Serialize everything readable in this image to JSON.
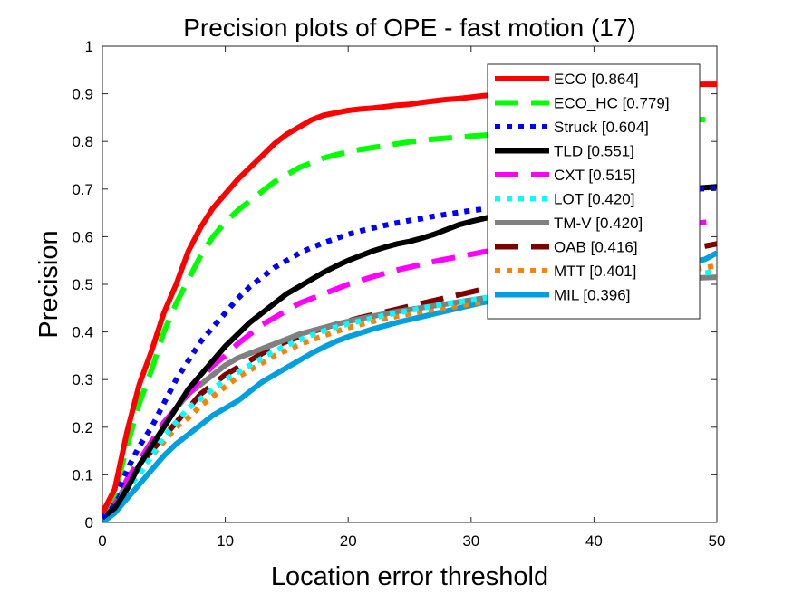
{
  "chart_data": {
    "type": "line",
    "title": "Precision plots of OPE - fast motion (17)",
    "xlabel": "Location error threshold",
    "ylabel": "Precision",
    "xlim": [
      0,
      50
    ],
    "ylim": [
      0,
      1
    ],
    "x_ticks": [
      "0",
      "10",
      "20",
      "30",
      "40",
      "50"
    ],
    "y_ticks": [
      "0",
      "0.1",
      "0.2",
      "0.3",
      "0.4",
      "0.5",
      "0.6",
      "0.7",
      "0.8",
      "0.9",
      "1"
    ],
    "grid": false,
    "legend_position": "top-right",
    "x": [
      0,
      1,
      2,
      3,
      4,
      5,
      6,
      7,
      8,
      9,
      10,
      11,
      12,
      13,
      14,
      15,
      16,
      17,
      18,
      19,
      20,
      21,
      22,
      23,
      24,
      25,
      26,
      27,
      28,
      29,
      30,
      31,
      32,
      33,
      34,
      35,
      36,
      37,
      38,
      39,
      40,
      41,
      42,
      43,
      44,
      45,
      46,
      47,
      48,
      49,
      50
    ],
    "series": [
      {
        "name": "ECO [0.864]",
        "color": "#ff0000",
        "dash": "solid",
        "values": [
          0.02,
          0.07,
          0.19,
          0.29,
          0.36,
          0.44,
          0.5,
          0.57,
          0.62,
          0.66,
          0.69,
          0.72,
          0.745,
          0.77,
          0.795,
          0.815,
          0.83,
          0.845,
          0.855,
          0.86,
          0.865,
          0.868,
          0.87,
          0.873,
          0.876,
          0.878,
          0.882,
          0.885,
          0.888,
          0.89,
          0.893,
          0.896,
          0.898,
          0.9,
          0.902,
          0.904,
          0.906,
          0.908,
          0.909,
          0.91,
          0.911,
          0.912,
          0.913,
          0.914,
          0.915,
          0.916,
          0.917,
          0.918,
          0.919,
          0.92,
          0.92
        ]
      },
      {
        "name": "ECO_HC [0.779]",
        "color": "#00ff00",
        "dash": "long",
        "values": [
          0.02,
          0.06,
          0.16,
          0.25,
          0.32,
          0.4,
          0.46,
          0.51,
          0.56,
          0.6,
          0.63,
          0.655,
          0.675,
          0.695,
          0.715,
          0.73,
          0.745,
          0.755,
          0.765,
          0.772,
          0.778,
          0.783,
          0.787,
          0.791,
          0.795,
          0.799,
          0.802,
          0.805,
          0.807,
          0.809,
          0.811,
          0.813,
          0.815,
          0.817,
          0.819,
          0.821,
          0.823,
          0.825,
          0.827,
          0.829,
          0.831,
          0.833,
          0.835,
          0.837,
          0.839,
          0.841,
          0.843,
          0.844,
          0.845,
          0.846,
          0.847
        ]
      },
      {
        "name": "Struck [0.604]",
        "color": "#0000ff",
        "dash": "dot",
        "values": [
          0.01,
          0.05,
          0.11,
          0.16,
          0.2,
          0.25,
          0.3,
          0.34,
          0.38,
          0.41,
          0.44,
          0.47,
          0.495,
          0.515,
          0.535,
          0.55,
          0.565,
          0.577,
          0.587,
          0.596,
          0.605,
          0.612,
          0.618,
          0.624,
          0.629,
          0.634,
          0.638,
          0.643,
          0.647,
          0.651,
          0.655,
          0.658,
          0.661,
          0.664,
          0.667,
          0.67,
          0.673,
          0.676,
          0.679,
          0.682,
          0.684,
          0.686,
          0.688,
          0.69,
          0.692,
          0.694,
          0.696,
          0.698,
          0.7,
          0.701,
          0.702
        ]
      },
      {
        "name": "TLD [0.551]",
        "color": "#000000",
        "dash": "solid",
        "values": [
          0.01,
          0.03,
          0.07,
          0.12,
          0.16,
          0.2,
          0.24,
          0.28,
          0.31,
          0.34,
          0.37,
          0.395,
          0.42,
          0.44,
          0.46,
          0.48,
          0.495,
          0.51,
          0.525,
          0.538,
          0.55,
          0.56,
          0.57,
          0.578,
          0.585,
          0.59,
          0.597,
          0.605,
          0.615,
          0.625,
          0.632,
          0.638,
          0.644,
          0.649,
          0.654,
          0.659,
          0.664,
          0.668,
          0.672,
          0.676,
          0.679,
          0.682,
          0.685,
          0.688,
          0.691,
          0.694,
          0.697,
          0.699,
          0.701,
          0.703,
          0.705
        ]
      },
      {
        "name": "CXT [0.515]",
        "color": "#ff00ff",
        "dash": "long",
        "values": [
          0.01,
          0.04,
          0.09,
          0.13,
          0.17,
          0.21,
          0.24,
          0.27,
          0.3,
          0.33,
          0.35,
          0.375,
          0.395,
          0.415,
          0.43,
          0.445,
          0.46,
          0.47,
          0.48,
          0.49,
          0.5,
          0.508,
          0.516,
          0.523,
          0.53,
          0.536,
          0.542,
          0.548,
          0.553,
          0.558,
          0.563,
          0.568,
          0.572,
          0.576,
          0.58,
          0.584,
          0.588,
          0.592,
          0.596,
          0.6,
          0.603,
          0.606,
          0.609,
          0.612,
          0.615,
          0.618,
          0.621,
          0.624,
          0.627,
          0.63,
          0.632
        ]
      },
      {
        "name": "LOT [0.420]",
        "color": "#00ffff",
        "dash": "dot",
        "values": [
          0.01,
          0.03,
          0.07,
          0.1,
          0.14,
          0.18,
          0.21,
          0.24,
          0.26,
          0.28,
          0.3,
          0.315,
          0.33,
          0.345,
          0.36,
          0.372,
          0.383,
          0.393,
          0.402,
          0.41,
          0.417,
          0.423,
          0.429,
          0.435,
          0.44,
          0.445,
          0.45,
          0.455,
          0.459,
          0.463,
          0.467,
          0.471,
          0.475,
          0.478,
          0.481,
          0.484,
          0.487,
          0.49,
          0.493,
          0.496,
          0.499,
          0.502,
          0.505,
          0.508,
          0.511,
          0.514,
          0.517,
          0.52,
          0.522,
          0.524,
          0.526
        ]
      },
      {
        "name": "TM-V [0.420]",
        "color": "#808080",
        "dash": "solid",
        "values": [
          0.01,
          0.04,
          0.08,
          0.12,
          0.16,
          0.2,
          0.24,
          0.27,
          0.29,
          0.31,
          0.33,
          0.345,
          0.355,
          0.365,
          0.375,
          0.385,
          0.395,
          0.402,
          0.409,
          0.416,
          0.422,
          0.428,
          0.433,
          0.438,
          0.443,
          0.447,
          0.451,
          0.455,
          0.459,
          0.463,
          0.467,
          0.471,
          0.474,
          0.477,
          0.48,
          0.483,
          0.486,
          0.489,
          0.492,
          0.495,
          0.497,
          0.499,
          0.501,
          0.503,
          0.505,
          0.507,
          0.509,
          0.511,
          0.513,
          0.514,
          0.515
        ]
      },
      {
        "name": "OAB [0.416]",
        "color": "#800000",
        "dash": "long",
        "values": [
          0.01,
          0.04,
          0.08,
          0.12,
          0.15,
          0.18,
          0.21,
          0.24,
          0.27,
          0.29,
          0.31,
          0.325,
          0.34,
          0.355,
          0.37,
          0.38,
          0.39,
          0.4,
          0.408,
          0.416,
          0.423,
          0.43,
          0.436,
          0.442,
          0.448,
          0.454,
          0.46,
          0.466,
          0.472,
          0.478,
          0.484,
          0.49,
          0.495,
          0.5,
          0.505,
          0.51,
          0.515,
          0.52,
          0.525,
          0.53,
          0.535,
          0.54,
          0.545,
          0.55,
          0.555,
          0.56,
          0.565,
          0.57,
          0.575,
          0.58,
          0.585
        ]
      },
      {
        "name": "MTT [0.401]",
        "color": "#ff8000",
        "dash": "dot",
        "values": [
          0.01,
          0.03,
          0.07,
          0.11,
          0.14,
          0.17,
          0.2,
          0.22,
          0.245,
          0.265,
          0.285,
          0.305,
          0.32,
          0.335,
          0.35,
          0.362,
          0.373,
          0.383,
          0.392,
          0.401,
          0.409,
          0.416,
          0.422,
          0.428,
          0.433,
          0.438,
          0.443,
          0.447,
          0.451,
          0.455,
          0.459,
          0.463,
          0.467,
          0.471,
          0.475,
          0.479,
          0.483,
          0.487,
          0.491,
          0.495,
          0.499,
          0.503,
          0.507,
          0.511,
          0.515,
          0.519,
          0.523,
          0.527,
          0.531,
          0.535,
          0.539
        ]
      },
      {
        "name": "MIL [0.396]",
        "color": "#00a0e0",
        "dash": "solid",
        "values": [
          0.0,
          0.02,
          0.05,
          0.08,
          0.11,
          0.14,
          0.165,
          0.185,
          0.205,
          0.225,
          0.24,
          0.255,
          0.275,
          0.295,
          0.31,
          0.325,
          0.34,
          0.355,
          0.368,
          0.38,
          0.39,
          0.398,
          0.406,
          0.413,
          0.42,
          0.426,
          0.432,
          0.438,
          0.444,
          0.45,
          0.456,
          0.462,
          0.467,
          0.472,
          0.477,
          0.482,
          0.487,
          0.492,
          0.497,
          0.502,
          0.507,
          0.512,
          0.517,
          0.522,
          0.527,
          0.532,
          0.537,
          0.542,
          0.547,
          0.552,
          0.566
        ]
      }
    ]
  }
}
